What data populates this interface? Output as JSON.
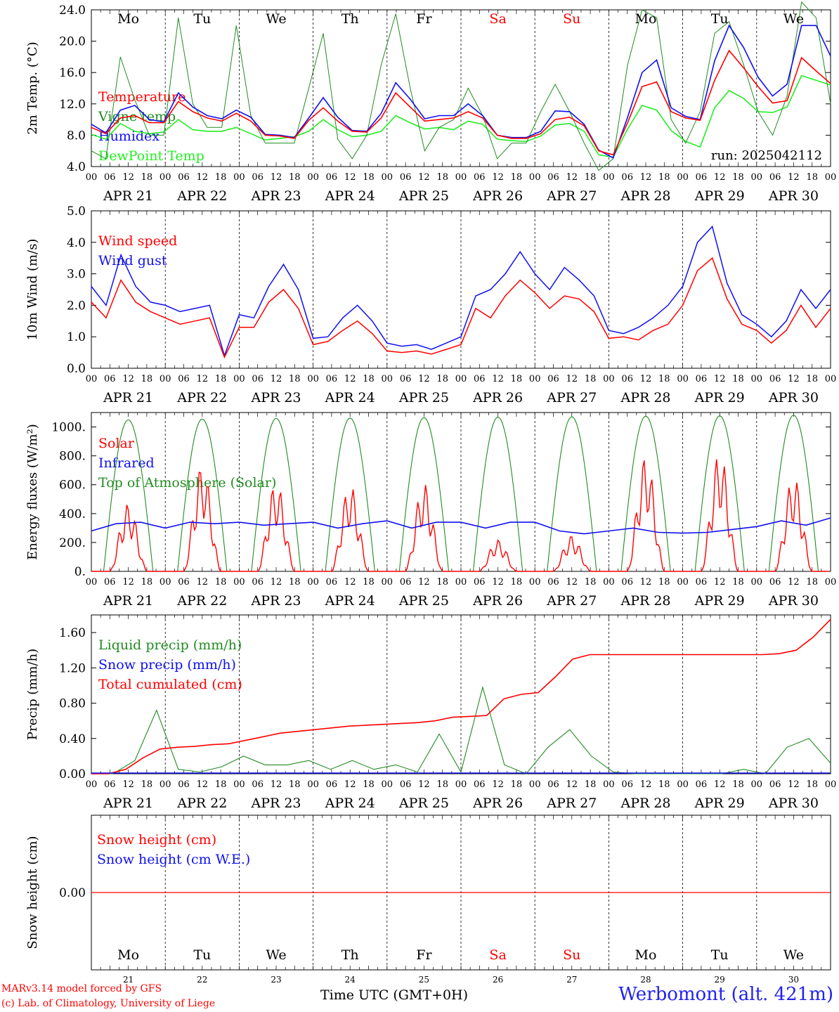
{
  "run_label": "run: 2025042112",
  "footer": {
    "credit_line1": "MARv3.14 model forced by GFS",
    "credit_line2": "(c) Lab. of Climatology, University of Liege",
    "xlabel": "Time UTC (GMT+0H)",
    "station": "Werbomont (alt. 421m)"
  },
  "days": [
    {
      "weekday": "Mo",
      "date": "APR 21",
      "num": "21",
      "weekend": false
    },
    {
      "weekday": "Tu",
      "date": "APR 22",
      "num": "22",
      "weekend": false
    },
    {
      "weekday": "We",
      "date": "APR 23",
      "num": "23",
      "weekend": false
    },
    {
      "weekday": "Th",
      "date": "APR 24",
      "num": "24",
      "weekend": false
    },
    {
      "weekday": "Fr",
      "date": "APR 25",
      "num": "25",
      "weekend": false
    },
    {
      "weekday": "Sa",
      "date": "APR 26",
      "num": "26",
      "weekend": true
    },
    {
      "weekday": "Su",
      "date": "APR 27",
      "num": "27",
      "weekend": true
    },
    {
      "weekday": "Mo",
      "date": "APR 28",
      "num": "28",
      "weekend": false
    },
    {
      "weekday": "Tu",
      "date": "APR 29",
      "num": "29",
      "weekend": false
    },
    {
      "weekday": "We",
      "date": "APR 30",
      "num": "30",
      "weekend": false
    }
  ],
  "hour_ticks": [
    "00",
    "06",
    "12",
    "18"
  ],
  "colors": {
    "red": "#ff0000",
    "blue": "#1010ee",
    "green": "#228b22",
    "lightgreen": "#22ee22",
    "weekend": "#ff0000"
  },
  "chart_data": [
    {
      "type": "line",
      "ylabel": "2m Temp. (°C)",
      "ylim": [
        4,
        24
      ],
      "yticks": [
        "4.0",
        "8.0",
        "12.0",
        "16.0",
        "20.0",
        "24.0"
      ],
      "legend": [
        {
          "name": "Temperature",
          "color": "#ff0000"
        },
        {
          "name": "Vigne temp",
          "color": "#228b22"
        },
        {
          "name": "Humidex",
          "color": "#1010ee"
        },
        {
          "name": "DewPoint Temp",
          "color": "#22ee22"
        }
      ],
      "x_unit": "hours since Apr 21 00 UTC, 6-hourly",
      "series": [
        {
          "name": "Temperature",
          "color": "#ff0000",
          "values": [
            9,
            8.2,
            10.2,
            10.5,
            9.6,
            9.6,
            12.3,
            11,
            10.2,
            9.8,
            10.8,
            9.8,
            8,
            7.9,
            7.6,
            9.9,
            11.5,
            9.8,
            8.5,
            8.4,
            10.2,
            13.4,
            11.6,
            9.8,
            10,
            10.2,
            11,
            10.2,
            8,
            7.6,
            7.6,
            8.2,
            10,
            10.3,
            9.2,
            6,
            5.5,
            9.6,
            14.2,
            14.8,
            11,
            10.2,
            9.9,
            15,
            18.8,
            16.6,
            14.2,
            12.1,
            12.4,
            17.9,
            16.2,
            14.6
          ]
        },
        {
          "name": "Humidex",
          "color": "#1010ee",
          "values": [
            9.4,
            8.3,
            11.2,
            11.8,
            10,
            9.7,
            13.4,
            11.6,
            10.5,
            10.1,
            11.2,
            10.3,
            8.1,
            8,
            7.7,
            10.2,
            12.8,
            10.3,
            8.6,
            8.5,
            10.8,
            14.7,
            12.6,
            10.1,
            10.5,
            10.5,
            12,
            10.5,
            8,
            7.7,
            7.7,
            8.5,
            11.1,
            11,
            9.4,
            6.1,
            5.1,
            10.3,
            16,
            17.6,
            11.5,
            10.4,
            10,
            17.5,
            22,
            19.2,
            15.4,
            13,
            14.5,
            22,
            22,
            18.1
          ]
        },
        {
          "name": "Vigne temp",
          "color": "#228b22",
          "values": [
            6,
            5,
            18,
            12.5,
            8,
            8,
            23,
            12,
            9,
            9,
            22,
            10.5,
            7,
            7,
            7,
            14,
            21,
            7.5,
            5,
            8,
            17,
            23.5,
            14,
            6,
            9,
            10,
            14,
            10.5,
            5,
            7,
            7,
            11,
            14.5,
            11,
            7,
            3.5,
            5,
            17,
            24,
            23,
            10,
            7,
            11,
            21,
            22.5,
            17,
            11,
            8,
            13,
            25,
            23,
            12
          ]
        },
        {
          "name": "DewPoint Temp",
          "color": "#22ee22",
          "values": [
            8.1,
            7.5,
            9.5,
            8.5,
            8.2,
            8.4,
            10,
            8.7,
            8.5,
            8.5,
            9,
            8.2,
            7.4,
            7.6,
            7.8,
            8.5,
            10,
            8.7,
            7.8,
            8,
            8.5,
            10.5,
            9.6,
            8.8,
            9,
            8.7,
            9.8,
            9.4,
            7.5,
            7.3,
            7.2,
            7.9,
            9.3,
            9.5,
            8.5,
            5.5,
            5.2,
            8.8,
            11.8,
            11.2,
            8.6,
            7.2,
            6.5,
            11.5,
            13.7,
            12.7,
            11,
            10.9,
            11.6,
            15.6,
            15,
            14.4
          ]
        }
      ]
    },
    {
      "type": "line",
      "ylabel": "10m Wind (m/s)",
      "ylim": [
        0,
        5
      ],
      "yticks": [
        "0.0",
        "1.0",
        "2.0",
        "3.0",
        "4.0",
        "5.0"
      ],
      "legend": [
        {
          "name": "Wind speed",
          "color": "#ff0000"
        },
        {
          "name": "Wind gust",
          "color": "#1010ee"
        }
      ],
      "series": [
        {
          "name": "Wind speed",
          "color": "#ff0000",
          "values": [
            2.1,
            1.6,
            2.8,
            2.1,
            1.8,
            1.6,
            1.4,
            1.5,
            1.6,
            0.35,
            1.3,
            1.3,
            2.1,
            2.5,
            1.9,
            0.75,
            0.85,
            1.2,
            1.5,
            1.1,
            0.55,
            0.5,
            0.55,
            0.45,
            0.6,
            0.75,
            1.9,
            1.6,
            2.3,
            2.8,
            2.4,
            1.9,
            2.3,
            2.2,
            1.8,
            0.95,
            1,
            0.9,
            1.2,
            1.4,
            2,
            3.1,
            3.5,
            2.2,
            1.4,
            1.2,
            0.8,
            1.2,
            2,
            1.3,
            1.9
          ]
        },
        {
          "name": "Wind gust",
          "color": "#1010ee",
          "values": [
            2.6,
            2,
            3.6,
            2.6,
            2.1,
            2,
            1.8,
            1.9,
            2,
            0.4,
            1.7,
            1.6,
            2.6,
            3.3,
            2.5,
            0.95,
            1,
            1.6,
            2,
            1.5,
            0.8,
            0.7,
            0.75,
            0.6,
            0.8,
            1,
            2.3,
            2.5,
            3,
            3.7,
            3,
            2.5,
            3.2,
            2.8,
            2.3,
            1.2,
            1.1,
            1.3,
            1.6,
            2,
            2.6,
            4,
            4.5,
            2.7,
            1.7,
            1.4,
            1,
            1.5,
            2.5,
            1.9,
            2.5
          ]
        }
      ]
    },
    {
      "type": "line",
      "ylabel": "Energy fluxes (W/m²)",
      "ylim": [
        0,
        1100
      ],
      "yticks": [
        "0.",
        "200.",
        "400.",
        "600.",
        "800.",
        "1000."
      ],
      "legend": [
        {
          "name": "Solar",
          "color": "#ff0000"
        },
        {
          "name": "Infrared",
          "color": "#1010ee"
        },
        {
          "name": "Top of Atmosphere (Solar)",
          "color": "#228b22"
        }
      ],
      "toa_peaks": [
        1050,
        1055,
        1060,
        1062,
        1065,
        1068,
        1071,
        1075,
        1078,
        1082
      ],
      "solar_peaks": [
        470,
        740,
        620,
        600,
        610,
        220,
        250,
        800,
        830,
        660
      ],
      "infrared": [
        280,
        330,
        340,
        300,
        340,
        330,
        340,
        320,
        330,
        340,
        300,
        330,
        350,
        300,
        340,
        340,
        300,
        340,
        340,
        280,
        260,
        280,
        300,
        270,
        265,
        270,
        290,
        310,
        350,
        320,
        370
      ]
    },
    {
      "type": "line",
      "ylabel": "Precip (mm/h)",
      "ylim": [
        0,
        1.8
      ],
      "yticks": [
        "0.00",
        "0.40",
        "0.80",
        "1.20",
        "1.60"
      ],
      "legend": [
        {
          "name": "Liquid precip (mm/h)",
          "color": "#228b22"
        },
        {
          "name": "Snow precip (mm/h)",
          "color": "#1010ee"
        },
        {
          "name": "Total cumulated (cm)",
          "color": "#ff0000"
        }
      ],
      "series": [
        {
          "name": "Total cumulated (cm)",
          "color": "#ff0000",
          "values": [
            0,
            0,
            0.05,
            0.18,
            0.28,
            0.3,
            0.31,
            0.33,
            0.34,
            0.38,
            0.42,
            0.46,
            0.48,
            0.5,
            0.52,
            0.54,
            0.55,
            0.56,
            0.57,
            0.58,
            0.6,
            0.64,
            0.65,
            0.66,
            0.85,
            0.9,
            0.92,
            1.1,
            1.3,
            1.35,
            1.35,
            1.35,
            1.35,
            1.35,
            1.35,
            1.35,
            1.35,
            1.35,
            1.35,
            1.35,
            1.36,
            1.4,
            1.55,
            1.75
          ]
        },
        {
          "name": "Liquid precip (mm/h)",
          "color": "#228b22",
          "values": [
            0,
            0,
            0.15,
            0.72,
            0.05,
            0.02,
            0.08,
            0.2,
            0.1,
            0.1,
            0.15,
            0.05,
            0.15,
            0.05,
            0.1,
            0.02,
            0.45,
            0.02,
            0.98,
            0.1,
            0,
            0.3,
            0.5,
            0.2,
            0.02,
            0,
            0,
            0,
            0,
            0,
            0.05,
            0,
            0.3,
            0.4,
            0.12
          ]
        }
      ]
    },
    {
      "type": "line",
      "ylabel": "Snow height (cm)",
      "ylim": [
        -1,
        1
      ],
      "yticks": [
        "0.00"
      ],
      "legend": [
        {
          "name": "Snow height (cm)",
          "color": "#ff0000"
        },
        {
          "name": "Snow height (cm W.E.)",
          "color": "#1010ee"
        }
      ],
      "series": [
        {
          "name": "Snow height (cm)",
          "color": "#ff0000",
          "values": [
            0,
            0
          ]
        }
      ]
    }
  ]
}
